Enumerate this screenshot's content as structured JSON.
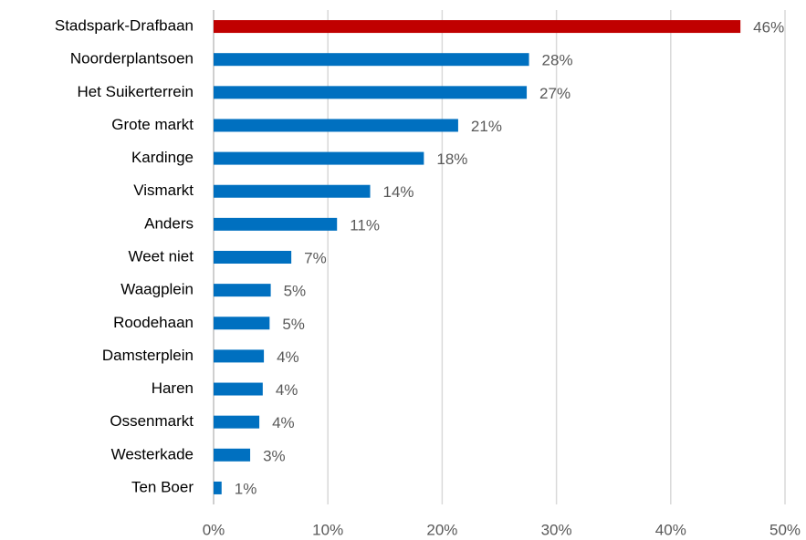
{
  "chart_data": {
    "type": "barh",
    "categories": [
      "Stadspark-Drafbaan",
      "Noorderplantsoen",
      "Het Suikerterrein",
      "Grote markt",
      "Kardinge",
      "Vismarkt",
      "Anders",
      "Weet niet",
      "Waagplein",
      "Roodehaan",
      "Damsterplein",
      "Haren",
      "Ossenmarkt",
      "Westerkade",
      "Ten Boer"
    ],
    "values": [
      46.1,
      27.6,
      27.4,
      21.4,
      18.4,
      13.7,
      10.8,
      6.8,
      5.0,
      4.9,
      4.4,
      4.3,
      4.0,
      3.2,
      0.7
    ],
    "value_labels": [
      "46%",
      "28%",
      "27%",
      "21%",
      "18%",
      "14%",
      "11%",
      "7%",
      "5%",
      "5%",
      "4%",
      "4%",
      "4%",
      "3%",
      "1%"
    ],
    "colors": [
      "#c00000",
      "#0070c0",
      "#0070c0",
      "#0070c0",
      "#0070c0",
      "#0070c0",
      "#0070c0",
      "#0070c0",
      "#0070c0",
      "#0070c0",
      "#0070c0",
      "#0070c0",
      "#0070c0",
      "#0070c0",
      "#0070c0"
    ],
    "xlim": [
      0,
      50
    ],
    "xticks": [
      {
        "value": 0,
        "label": "0%"
      },
      {
        "value": 10,
        "label": "10%"
      },
      {
        "value": 20,
        "label": "20%"
      },
      {
        "value": 30,
        "label": "30%"
      },
      {
        "value": 40,
        "label": "40%"
      },
      {
        "value": 50,
        "label": "50%"
      }
    ],
    "grid": true
  }
}
